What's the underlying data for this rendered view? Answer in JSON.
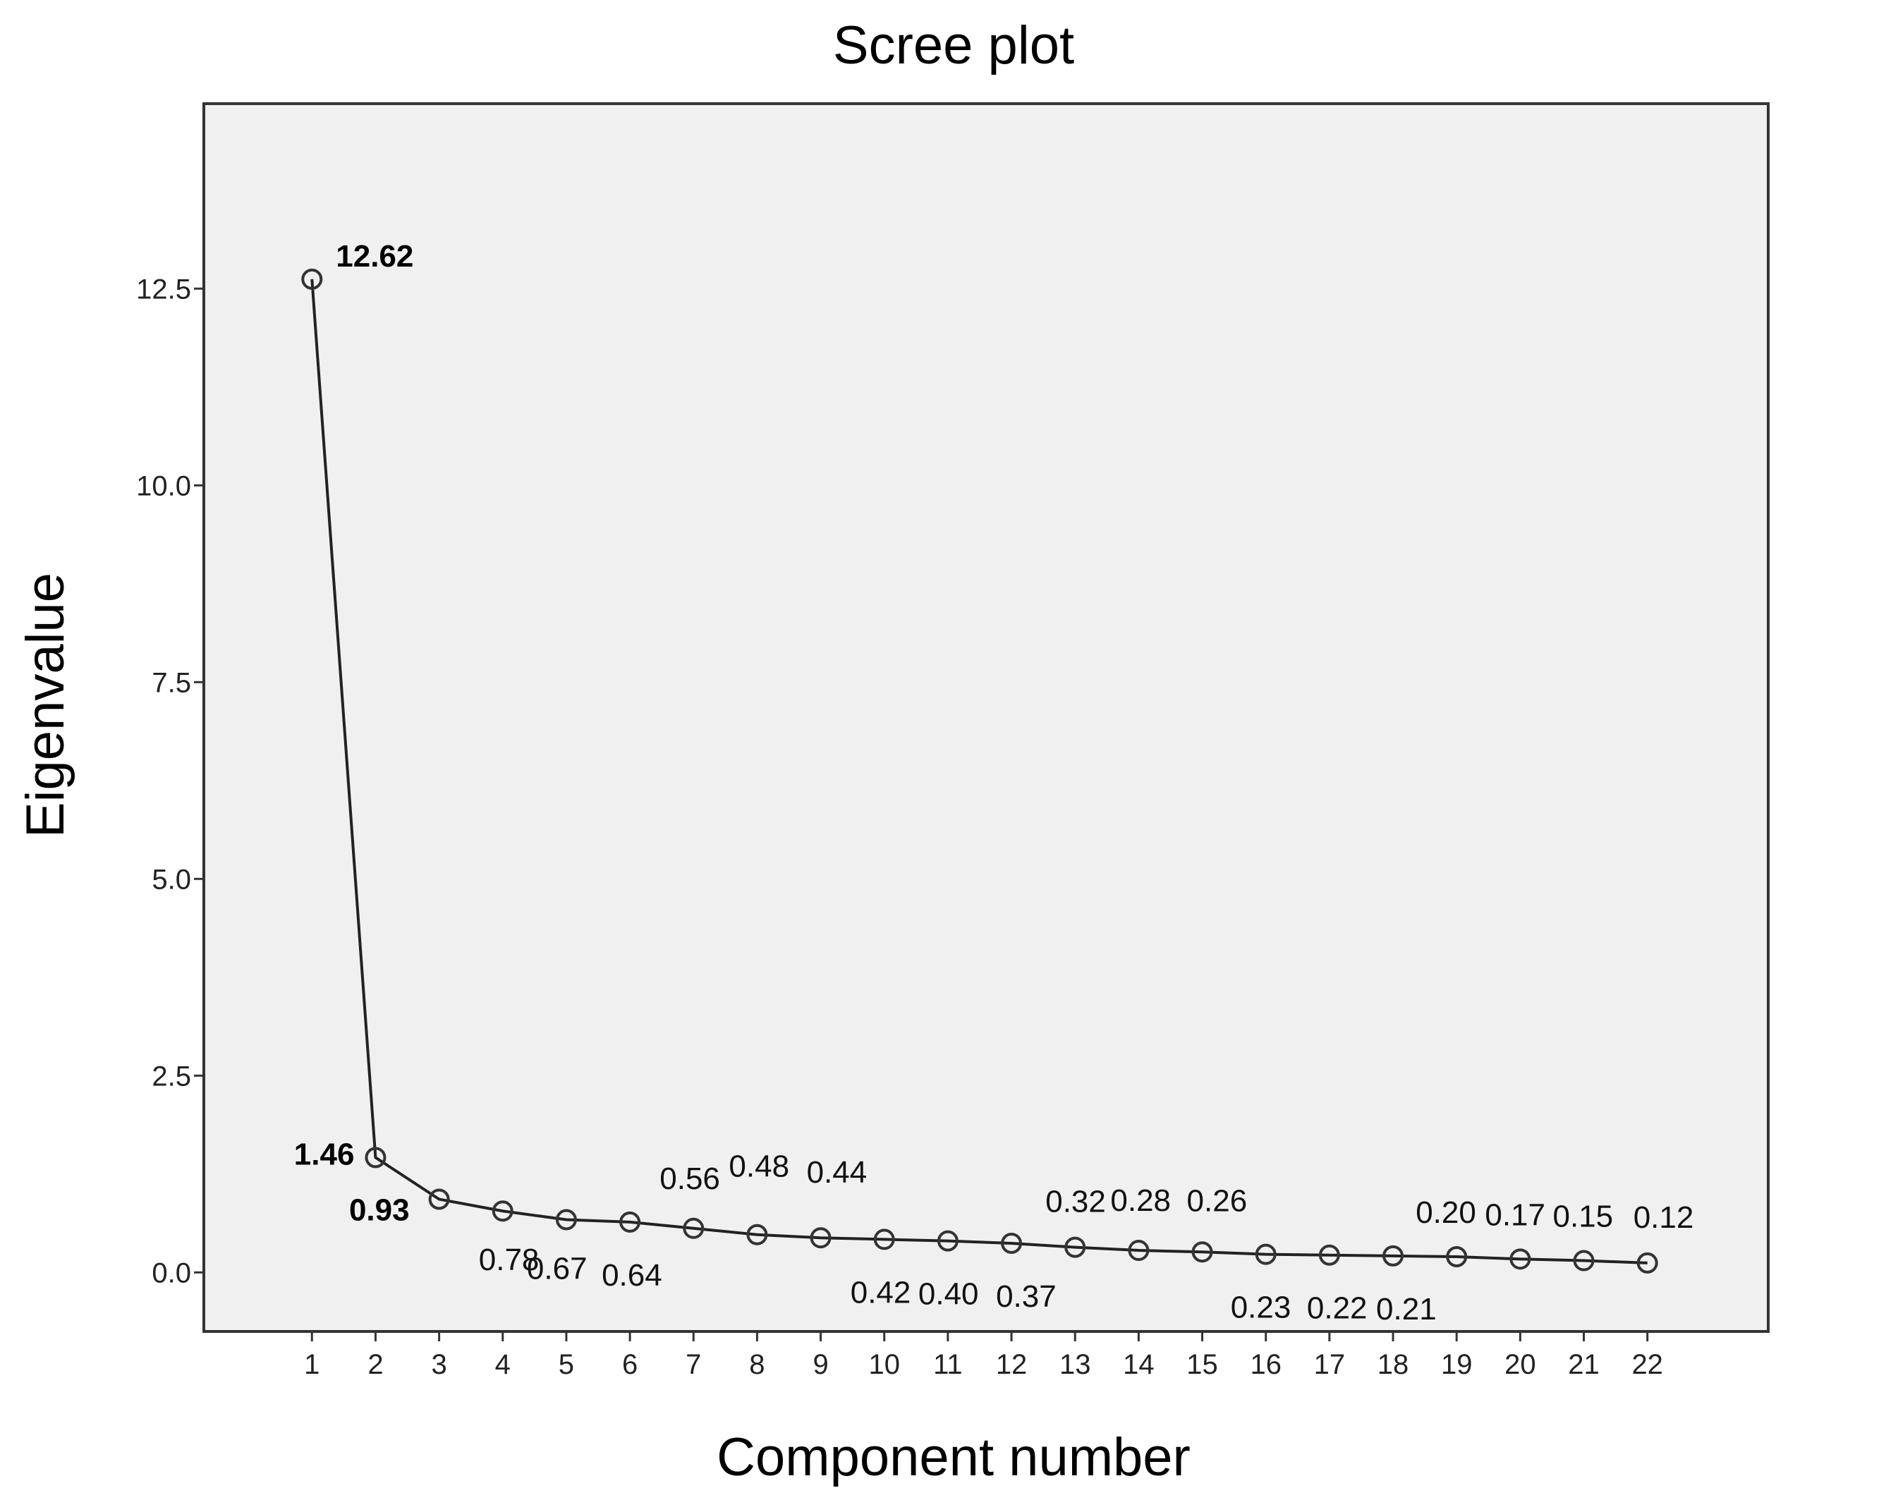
{
  "chart_data": {
    "type": "line",
    "title": "Scree plot",
    "xlabel": "Component number",
    "ylabel": "Eigenvalue",
    "x": [
      1,
      2,
      3,
      4,
      5,
      6,
      7,
      8,
      9,
      10,
      11,
      12,
      13,
      14,
      15,
      16,
      17,
      18,
      19,
      20,
      21,
      22
    ],
    "x_tick_labels": [
      "1",
      "2",
      "3",
      "4",
      "5",
      "6",
      "7",
      "8",
      "9",
      "10",
      "11",
      "12",
      "13",
      "14",
      "15",
      "16",
      "17",
      "18",
      "19",
      "20",
      "21",
      "22"
    ],
    "y_ticks": [
      0.0,
      2.5,
      5.0,
      7.5,
      10.0,
      12.5
    ],
    "y_tick_labels": [
      "0.0",
      "2.5",
      "5.0",
      "7.5",
      "10.0",
      "12.5"
    ],
    "ylim": [
      -0.75,
      14.85
    ],
    "xlim": [
      -0.7,
      23.9
    ],
    "grid": false,
    "background_color": "#f0f0f0",
    "line_color": "#222222",
    "series": [
      {
        "values": [
          12.62,
          1.46,
          0.93,
          0.78,
          0.67,
          0.64,
          0.56,
          0.48,
          0.44,
          0.42,
          0.4,
          0.37,
          0.32,
          0.28,
          0.26,
          0.23,
          0.22,
          0.21,
          0.2,
          0.17,
          0.15,
          0.12
        ]
      }
    ],
    "data_labels": [
      "12.62",
      "1.46",
      "0.93",
      "0.78",
      "0.67",
      "0.64",
      "0.56",
      "0.48",
      "0.44",
      "0.42",
      "0.40",
      "0.37",
      "0.32",
      "0.28",
      "0.26",
      "0.23",
      "0.22",
      "0.21",
      "0.20",
      "0.17",
      "0.15",
      "0.12"
    ],
    "bold_labels": [
      "12.62",
      "1.46",
      "0.93"
    ]
  }
}
